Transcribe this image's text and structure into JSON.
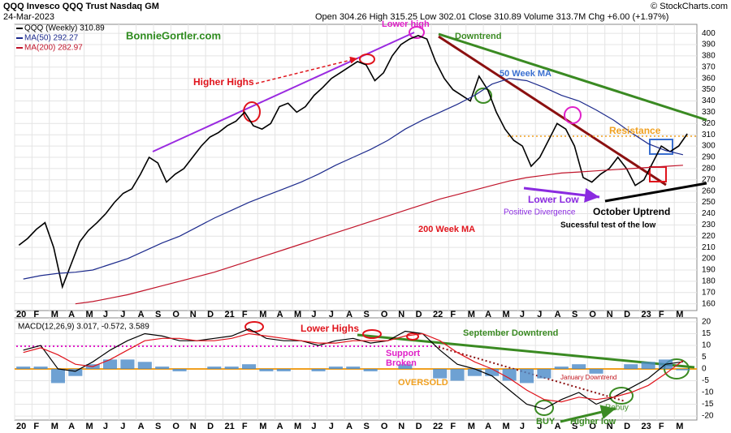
{
  "chart_data": [
    {
      "type": "line",
      "title": "QQQ Invesco QQQ Trust Nasdaq GM",
      "date": "24-Mar-2023",
      "quote": "Open 304.26 High 315.25 Low 302.01 Close 310.89 Volume 313.7M Chg +6.00 (+1.97%)",
      "source": "© StockCharts.com",
      "grid": true,
      "xlim": [
        0,
        39.3
      ],
      "ylim": [
        154,
        408
      ],
      "yticks": [
        160,
        170,
        180,
        190,
        200,
        210,
        220,
        230,
        240,
        250,
        260,
        270,
        280,
        290,
        300,
        310,
        320,
        330,
        340,
        350,
        360,
        370,
        380,
        390,
        400
      ],
      "xticks": [
        {
          "value": 0,
          "label": "20"
        },
        {
          "value": 1,
          "label": "F"
        },
        {
          "value": 2,
          "label": "M"
        },
        {
          "value": 3,
          "label": "A"
        },
        {
          "value": 4,
          "label": "M"
        },
        {
          "value": 5,
          "label": "J"
        },
        {
          "value": 6,
          "label": "J"
        },
        {
          "value": 7,
          "label": "A"
        },
        {
          "value": 8,
          "label": "S"
        },
        {
          "value": 9,
          "label": "O"
        },
        {
          "value": 10,
          "label": "N"
        },
        {
          "value": 11,
          "label": "D"
        },
        {
          "value": 12,
          "label": "21"
        },
        {
          "value": 13,
          "label": "F"
        },
        {
          "value": 14,
          "label": "M"
        },
        {
          "value": 15,
          "label": "A"
        },
        {
          "value": 16,
          "label": "M"
        },
        {
          "value": 17,
          "label": "J"
        },
        {
          "value": 18,
          "label": "J"
        },
        {
          "value": 19,
          "label": "A"
        },
        {
          "value": 20,
          "label": "S"
        },
        {
          "value": 21,
          "label": "O"
        },
        {
          "value": 22,
          "label": "N"
        },
        {
          "value": 23,
          "label": "D"
        },
        {
          "value": 24,
          "label": "22"
        },
        {
          "value": 25,
          "label": "F"
        },
        {
          "value": 26,
          "label": "M"
        },
        {
          "value": 27,
          "label": "A"
        },
        {
          "value": 28,
          "label": "M"
        },
        {
          "value": 29,
          "label": "J"
        },
        {
          "value": 30,
          "label": "J"
        },
        {
          "value": 31,
          "label": "A"
        },
        {
          "value": 32,
          "label": "S"
        },
        {
          "value": 33,
          "label": "O"
        },
        {
          "value": 34,
          "label": "N"
        },
        {
          "value": 35,
          "label": "D"
        },
        {
          "value": 36,
          "label": "23"
        },
        {
          "value": 37,
          "label": "F"
        },
        {
          "value": 38,
          "label": "M"
        }
      ],
      "series": [
        {
          "name": "QQQ (Weekly) 310.89",
          "color": "#000000",
          "x": [
            0.25,
            0.75,
            1.25,
            1.75,
            2.25,
            2.75,
            3.25,
            3.75,
            4.25,
            4.75,
            5.25,
            5.75,
            6.25,
            6.75,
            7.25,
            7.75,
            8.25,
            8.75,
            9.25,
            9.75,
            10.25,
            10.75,
            11.25,
            11.75,
            12.25,
            12.75,
            13.25,
            13.75,
            14.25,
            14.75,
            15.25,
            15.75,
            16.25,
            16.75,
            17.25,
            17.75,
            18.25,
            18.75,
            19.25,
            19.75,
            20.25,
            20.75,
            21.25,
            21.75,
            22.25,
            22.75,
            23.25,
            23.75,
            24.25,
            24.75,
            25.25,
            25.75,
            26.25,
            26.75,
            27.25,
            27.75,
            28.25,
            28.75,
            29.25,
            29.75,
            30.25,
            30.75,
            31.25,
            31.75,
            32.25,
            32.75,
            33.25,
            33.75,
            34.25,
            34.75,
            35.25,
            35.75,
            36.25,
            36.75,
            37.25,
            37.75,
            38.25,
            38.75
          ],
          "values": [
            212,
            218,
            226,
            232,
            210,
            175,
            195,
            215,
            225,
            232,
            240,
            250,
            258,
            262,
            275,
            290,
            285,
            268,
            275,
            280,
            290,
            300,
            308,
            312,
            318,
            322,
            330,
            318,
            315,
            320,
            335,
            338,
            330,
            335,
            345,
            352,
            360,
            365,
            370,
            375,
            372,
            358,
            365,
            380,
            390,
            395,
            398,
            395,
            375,
            360,
            350,
            345,
            340,
            362,
            350,
            330,
            315,
            305,
            300,
            282,
            290,
            305,
            320,
            315,
            300,
            272,
            268,
            275,
            280,
            290,
            280,
            265,
            270,
            285,
            300,
            295,
            300,
            310.89
          ]
        },
        {
          "name": "MA(50) 292.27",
          "color": "#1c2a8c",
          "x": [
            0.5,
            1.5,
            2.5,
            3.5,
            4.5,
            5.5,
            6.5,
            7.5,
            8.5,
            9.5,
            10.5,
            11.5,
            12.5,
            13.5,
            14.5,
            15.5,
            16.5,
            17.5,
            18.5,
            19.5,
            20.5,
            21.5,
            22.5,
            23.5,
            24.5,
            25.5,
            26.5,
            27.5,
            28.5,
            29.5,
            30.5,
            31.5,
            32.5,
            33.5,
            34.5,
            35.5,
            36.5,
            37.5,
            38.5
          ],
          "values": [
            182,
            185,
            187,
            188,
            190,
            195,
            200,
            207,
            214,
            220,
            228,
            236,
            243,
            250,
            256,
            262,
            268,
            275,
            283,
            290,
            297,
            305,
            315,
            323,
            330,
            337,
            345,
            355,
            360,
            358,
            352,
            345,
            340,
            332,
            323,
            312,
            302,
            296,
            292.27
          ]
        },
        {
          "name": "MA(200) 282.97",
          "color": "#c0142a",
          "x": [
            0.5,
            1.5,
            2.5,
            3.5,
            4.5,
            5.5,
            6.5,
            7.5,
            8.5,
            9.5,
            10.5,
            11.5,
            12.5,
            13.5,
            14.5,
            15.5,
            16.5,
            17.5,
            18.5,
            19.5,
            20.5,
            21.5,
            22.5,
            23.5,
            24.5,
            25.5,
            26.5,
            27.5,
            28.5,
            29.5,
            30.5,
            31.5,
            32.5,
            33.5,
            34.5,
            35.5,
            36.5,
            37.5,
            38.5
          ],
          "values": [
            null,
            null,
            null,
            160,
            162,
            165,
            168,
            172,
            176,
            180,
            184,
            188,
            193,
            198,
            203,
            208,
            213,
            218,
            223,
            228,
            233,
            238,
            243,
            248,
            253,
            257,
            261,
            265,
            269,
            272,
            274,
            276,
            277,
            278,
            279,
            280,
            281,
            282,
            282.97
          ]
        }
      ],
      "annotations": [
        {
          "text": "BonnieGortler.com",
          "color": "#2e8b1e"
        },
        {
          "text": "Higher Highs",
          "color": "#e0141c"
        },
        {
          "text": "Lower high",
          "color": "#e020c8"
        },
        {
          "text": "Downtrend",
          "color": "#3a8a22"
        },
        {
          "text": "50 Week MA",
          "color": "#3a6fd0"
        },
        {
          "text": "Resistance",
          "color": "#f0a020"
        },
        {
          "text": "Lower Low",
          "color": "#8a2ae0"
        },
        {
          "text": "Positive Divergence",
          "color": "#8a2ae0"
        },
        {
          "text": "October Uptrend",
          "color": "#000000"
        },
        {
          "text": "Sucessful test of the low",
          "color": "#000000"
        },
        {
          "text": "200 Week MA",
          "color": "#e0141c"
        }
      ]
    },
    {
      "type": "line",
      "legend": "MACD(12,26,9) 3.017, -0.572, 3.589",
      "grid": true,
      "xlim": [
        0,
        39.3
      ],
      "ylim": [
        -21.7,
        21.7
      ],
      "yticks": [
        -20,
        -15,
        -10,
        -5,
        0,
        5,
        10,
        15,
        20
      ],
      "xticks": [
        {
          "value": 0,
          "label": "20"
        },
        {
          "value": 1,
          "label": "F"
        },
        {
          "value": 2,
          "label": "M"
        },
        {
          "value": 3,
          "label": "A"
        },
        {
          "value": 4,
          "label": "M"
        },
        {
          "value": 5,
          "label": "J"
        },
        {
          "value": 6,
          "label": "J"
        },
        {
          "value": 7,
          "label": "A"
        },
        {
          "value": 8,
          "label": "S"
        },
        {
          "value": 9,
          "label": "O"
        },
        {
          "value": 10,
          "label": "N"
        },
        {
          "value": 11,
          "label": "D"
        },
        {
          "value": 12,
          "label": "21"
        },
        {
          "value": 13,
          "label": "F"
        },
        {
          "value": 14,
          "label": "M"
        },
        {
          "value": 15,
          "label": "A"
        },
        {
          "value": 16,
          "label": "M"
        },
        {
          "value": 17,
          "label": "J"
        },
        {
          "value": 18,
          "label": "J"
        },
        {
          "value": 19,
          "label": "A"
        },
        {
          "value": 20,
          "label": "S"
        },
        {
          "value": 21,
          "label": "O"
        },
        {
          "value": 22,
          "label": "N"
        },
        {
          "value": 23,
          "label": "D"
        },
        {
          "value": 24,
          "label": "22"
        },
        {
          "value": 25,
          "label": "F"
        },
        {
          "value": 26,
          "label": "M"
        },
        {
          "value": 27,
          "label": "A"
        },
        {
          "value": 28,
          "label": "M"
        },
        {
          "value": 29,
          "label": "J"
        },
        {
          "value": 30,
          "label": "J"
        },
        {
          "value": 31,
          "label": "A"
        },
        {
          "value": 32,
          "label": "S"
        },
        {
          "value": 33,
          "label": "O"
        },
        {
          "value": 34,
          "label": "N"
        },
        {
          "value": 35,
          "label": "D"
        },
        {
          "value": 36,
          "label": "23"
        },
        {
          "value": 37,
          "label": "F"
        },
        {
          "value": 38,
          "label": "M"
        }
      ],
      "x": [
        0.5,
        1.5,
        2.5,
        3.5,
        4.5,
        5.5,
        6.5,
        7.5,
        8.5,
        9.5,
        10.5,
        11.5,
        12.5,
        13.5,
        14.5,
        15.5,
        16.5,
        17.5,
        18.5,
        19.5,
        20.5,
        21.5,
        22.5,
        23.5,
        24.5,
        25.5,
        26.5,
        27.5,
        28.5,
        29.5,
        30.5,
        31.5,
        32.5,
        33.5,
        34.5,
        35.5,
        36.5,
        37.5,
        38.5
      ],
      "series": [
        {
          "name": "Histogram",
          "type": "bar",
          "color": "#4a8ac8",
          "values": [
            1,
            1,
            -6,
            -3,
            2,
            4,
            4,
            3,
            1,
            -1,
            0,
            1,
            1,
            2,
            -1,
            -1,
            0,
            -1,
            1,
            1,
            -1,
            0,
            2,
            0,
            -4,
            -5,
            -3,
            -3,
            -5,
            -6,
            -4,
            1,
            2,
            -2,
            0,
            2,
            3,
            4,
            -0.572
          ]
        },
        {
          "name": "MACD",
          "type": "line",
          "color": "#000000",
          "values": [
            8,
            10,
            0,
            -1,
            3,
            8,
            12,
            15,
            14,
            12,
            12,
            13,
            14,
            17,
            13,
            12,
            12,
            10,
            12,
            13,
            11,
            12,
            16,
            15,
            8,
            2,
            0,
            -3,
            -9,
            -15,
            -17,
            -13,
            -10,
            -15,
            -12,
            -8,
            -4,
            2,
            3.017
          ]
        },
        {
          "name": "Signal",
          "type": "line",
          "color": "#e0141c",
          "values": [
            7,
            9,
            6,
            2,
            1,
            4,
            8,
            12,
            13,
            13,
            12,
            12,
            13,
            15,
            14,
            13,
            12,
            11,
            11,
            12,
            12,
            12,
            14,
            15,
            12,
            7,
            3,
            0,
            -4,
            -9,
            -13,
            -14,
            -12,
            -13,
            -12,
            -10,
            -7,
            -2,
            3.589
          ]
        }
      ],
      "annotations": [
        {
          "text": "Lower Highs",
          "color": "#e0141c"
        },
        {
          "text": "September Downtrend",
          "color": "#3a8a22"
        },
        {
          "text": "Support",
          "color": "#e020c8"
        },
        {
          "text": "Broken",
          "color": "#e020c8"
        },
        {
          "text": "OVERSOLD",
          "color": "#f0a020"
        },
        {
          "text": "January Downtrend",
          "color": "#c0141c"
        },
        {
          "text": "Rebuy",
          "color": "#3a8a22"
        },
        {
          "text": "BUY",
          "color": "#3a8a22"
        },
        {
          "text": "Higher low",
          "color": "#3a8a22"
        }
      ]
    }
  ]
}
